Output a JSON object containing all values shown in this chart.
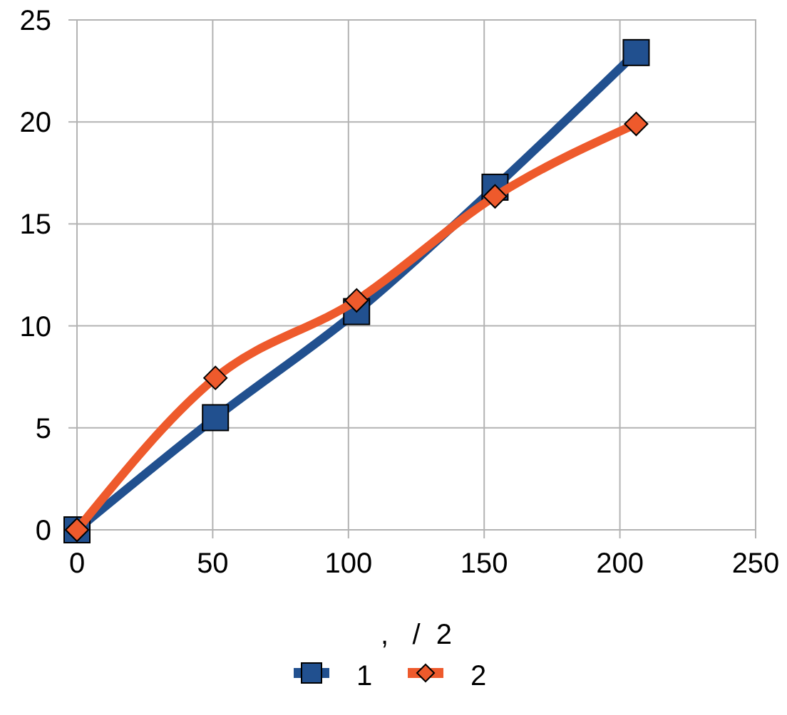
{
  "chart_data": {
    "type": "line",
    "xlabel": ",   /  2",
    "x": [
      0,
      51,
      103,
      154,
      206
    ],
    "series": [
      {
        "name": "1",
        "color": "#21508f",
        "marker": "square",
        "values": [
          0,
          5.5,
          10.7,
          16.8,
          23.4
        ]
      },
      {
        "name": "2",
        "color": "#ee5a2c",
        "marker": "diamond",
        "values": [
          0,
          7.45,
          11.25,
          16.35,
          19.9
        ]
      }
    ],
    "xlim": [
      0,
      250
    ],
    "xticks": [
      0,
      50,
      100,
      150,
      200,
      250
    ],
    "ylim": [
      0,
      25
    ],
    "yticks": [
      0,
      5,
      10,
      15,
      20,
      25
    ],
    "grid": true,
    "legend": "bottom"
  }
}
